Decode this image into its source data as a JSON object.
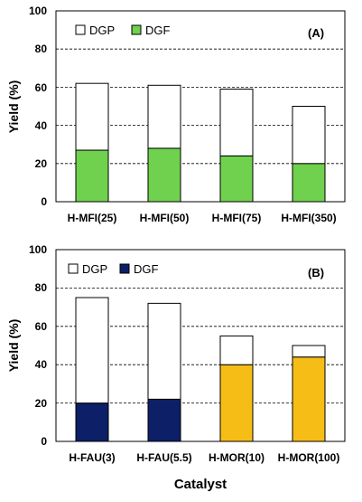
{
  "colors": {
    "dgp": "#ffffff",
    "dgf_A": "#6fd14d",
    "dgf_B1": "#0d1f66",
    "dgf_B2": "#f6bd16",
    "axis": "#000000",
    "grid": "#000000"
  },
  "chart_data": [
    {
      "type": "bar",
      "stacked": true,
      "panel_label": "(A)",
      "ylabel": "Yield (%)",
      "xlabel": "",
      "ylim": [
        0,
        100
      ],
      "yticks": [
        0,
        20,
        40,
        60,
        80,
        100
      ],
      "grid": "dashed horizontal",
      "legend_position": "top-left",
      "categories": [
        "H-MFI(25)",
        "H-MFI(50)",
        "H-MFI(75)",
        "H-MFI(350)"
      ],
      "series": [
        {
          "name": "DGF",
          "values": [
            27,
            28,
            24,
            20
          ]
        },
        {
          "name": "DGP",
          "values": [
            35,
            33,
            35,
            30
          ]
        }
      ],
      "totals": [
        62,
        61,
        59,
        50
      ]
    },
    {
      "type": "bar",
      "stacked": true,
      "panel_label": "(B)",
      "ylabel": "Yield (%)",
      "xlabel": "Catalyst",
      "ylim": [
        0,
        100
      ],
      "yticks": [
        0,
        20,
        40,
        60,
        80,
        100
      ],
      "grid": "dashed horizontal",
      "legend_position": "top-left",
      "categories": [
        "H-FAU(3)",
        "H-FAU(5.5)",
        "H-MOR(10)",
        "H-MOR(100)"
      ],
      "series": [
        {
          "name": "DGF",
          "values": [
            20,
            22,
            40,
            44
          ]
        },
        {
          "name": "DGP",
          "values": [
            55,
            50,
            15,
            6
          ]
        }
      ],
      "totals": [
        75,
        72,
        55,
        50
      ]
    }
  ]
}
